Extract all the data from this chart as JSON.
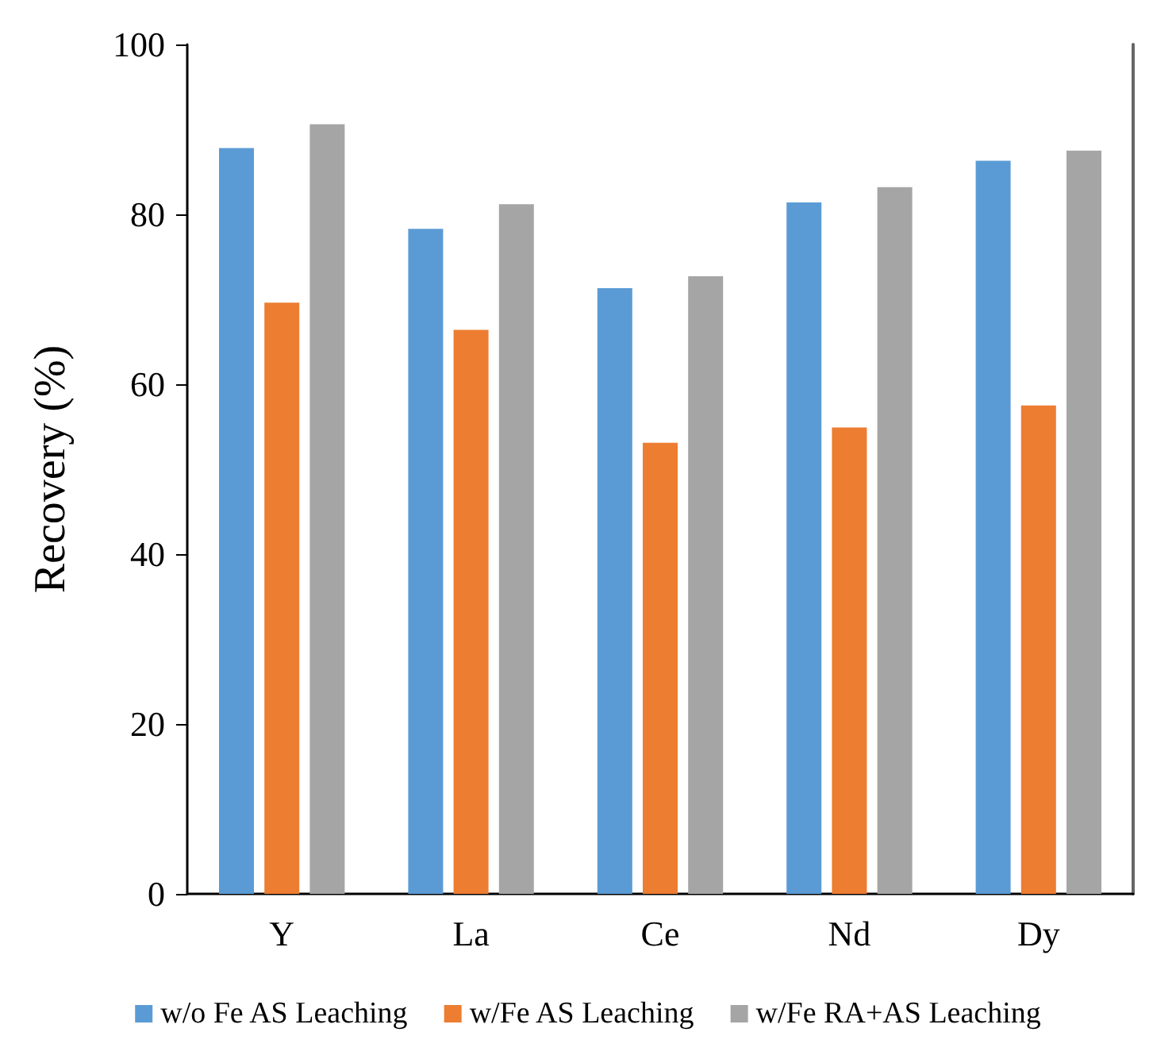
{
  "chart_data": {
    "type": "bar",
    "ylabel": "Recovery (%)",
    "categories": [
      "Y",
      "La",
      "Ce",
      "Nd",
      "Dy"
    ],
    "series": [
      {
        "name": "w/o Fe AS Leaching",
        "color": "#5b9bd5",
        "values": [
          87.8,
          78.3,
          71.3,
          81.4,
          86.3
        ]
      },
      {
        "name": "w/Fe AS Leaching",
        "color": "#ed7d31",
        "values": [
          69.6,
          66.4,
          53.1,
          54.9,
          57.5
        ]
      },
      {
        "name": "w/Fe RA+AS Leaching",
        "color": "#a5a5a5",
        "values": [
          90.6,
          81.2,
          72.7,
          83.2,
          87.5
        ]
      }
    ],
    "ylim": [
      0,
      100
    ],
    "yticks": [
      0,
      20,
      40,
      60,
      80,
      100
    ],
    "grid": false,
    "legend": "bottom"
  }
}
